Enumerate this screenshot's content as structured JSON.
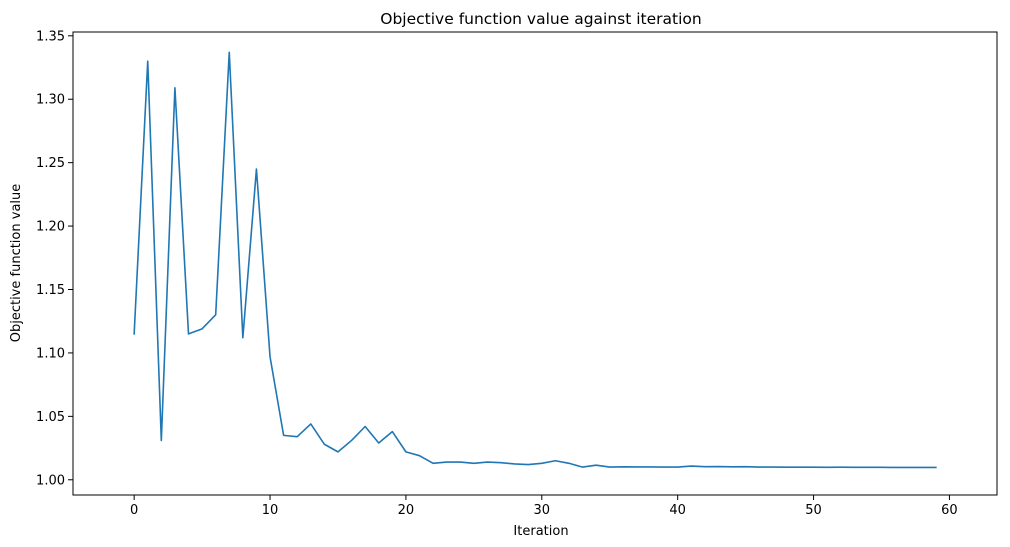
{
  "chart_data": {
    "type": "line",
    "title": "Objective function value against iteration",
    "xlabel": "Iteration",
    "ylabel": "Objective function value",
    "xlim": [
      -4.5,
      63.5
    ],
    "ylim": [
      0.988,
      1.353
    ],
    "xticks": [
      0,
      10,
      20,
      30,
      40,
      50,
      60
    ],
    "xtick_labels": [
      "0",
      "10",
      "20",
      "30",
      "40",
      "50",
      "60"
    ],
    "yticks": [
      1.0,
      1.05,
      1.1,
      1.15,
      1.2,
      1.25,
      1.3,
      1.35
    ],
    "ytick_labels": [
      "1.00",
      "1.05",
      "1.10",
      "1.15",
      "1.20",
      "1.25",
      "1.30",
      "1.35"
    ],
    "grid": false,
    "line_color": "#1f77b4",
    "series": [
      {
        "x": [
          0,
          1,
          2,
          3,
          4,
          5,
          6,
          7,
          8,
          9,
          10,
          11,
          12,
          13,
          14,
          15,
          16,
          17,
          18,
          19,
          20,
          21,
          22,
          23,
          24,
          25,
          26,
          27,
          28,
          29,
          30,
          31,
          32,
          33,
          34,
          35,
          36,
          37,
          38,
          39,
          40,
          41,
          42,
          43,
          44,
          45,
          46,
          47,
          48,
          49,
          50,
          51,
          52,
          53,
          54,
          55,
          56,
          57,
          58,
          59
        ],
        "values": [
          1.115,
          1.33,
          1.031,
          1.309,
          1.115,
          1.119,
          1.13,
          1.337,
          1.112,
          1.245,
          1.097,
          1.035,
          1.034,
          1.044,
          1.028,
          1.022,
          1.031,
          1.042,
          1.029,
          1.038,
          1.022,
          1.019,
          1.013,
          1.014,
          1.014,
          1.013,
          1.014,
          1.0135,
          1.0125,
          1.012,
          1.013,
          1.015,
          1.013,
          1.01,
          1.0115,
          1.01,
          1.0102,
          1.0101,
          1.0101,
          1.01,
          1.01,
          1.0108,
          1.0103,
          1.0104,
          1.0102,
          1.0103,
          1.01,
          1.01,
          1.0099,
          1.0099,
          1.0099,
          1.0098,
          1.0099,
          1.0098,
          1.0098,
          1.0098,
          1.0097,
          1.0097,
          1.0097,
          1.0097
        ]
      }
    ]
  }
}
